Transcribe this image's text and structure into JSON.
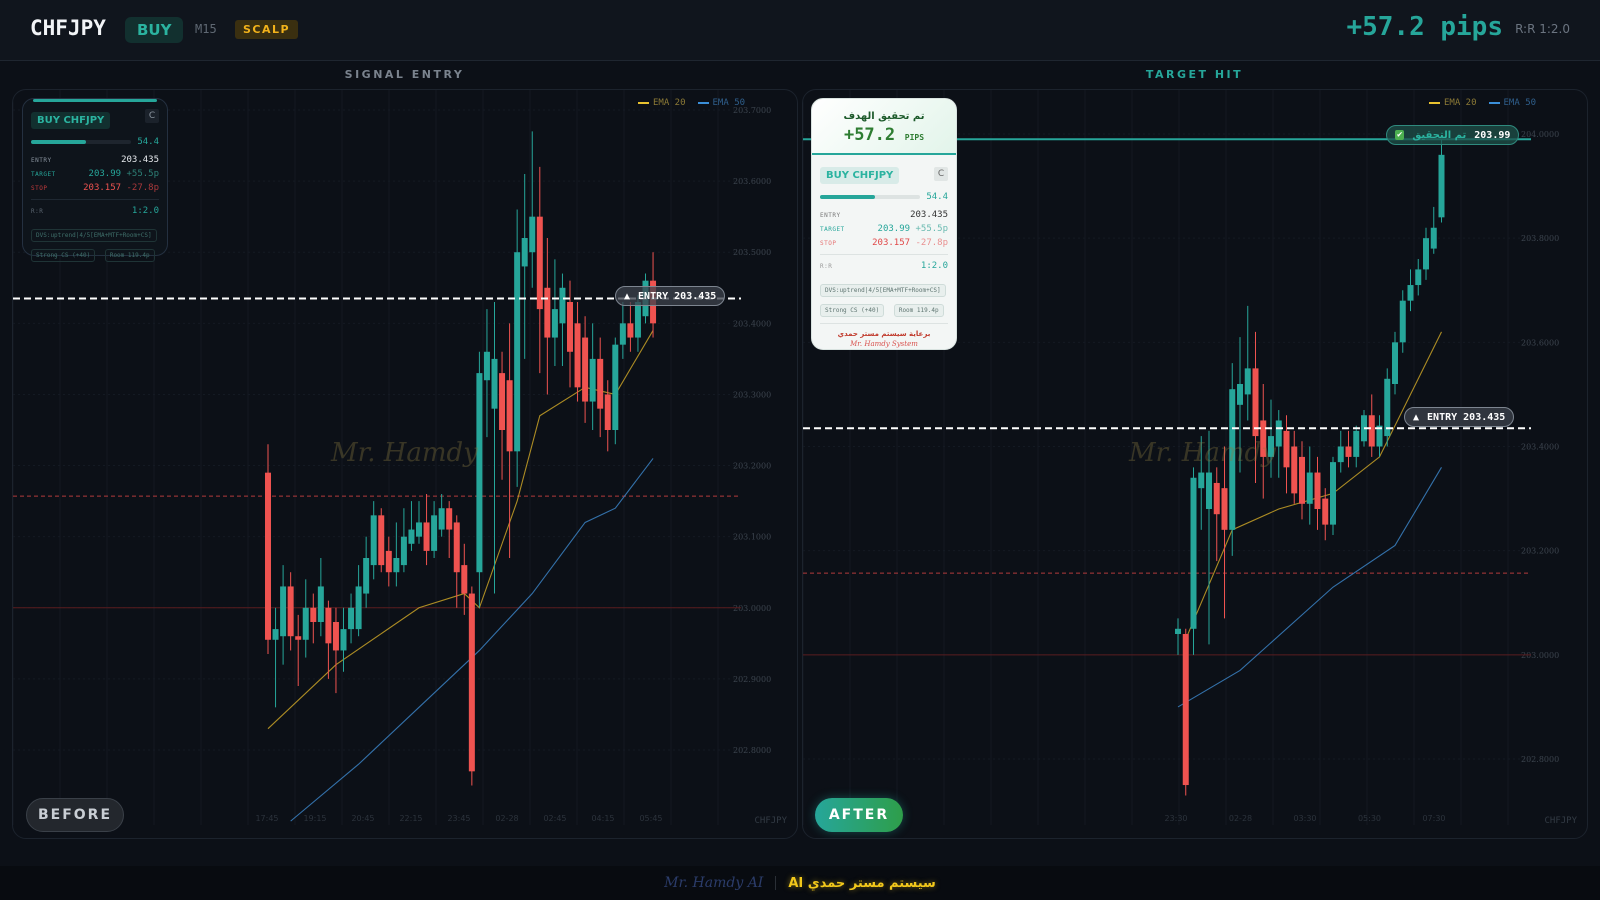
{
  "header": {
    "pair": "CHFJPY",
    "side": "BUY",
    "timeframe": "M15",
    "style": "SCALP",
    "pips": "+57.2 pips",
    "rr": "R:R 1:2.0"
  },
  "colors": {
    "bull": "#26a69a",
    "bear": "#ef5350",
    "ema20": "#c9a227",
    "ema50": "#3b82c4",
    "accent": "#26a69a",
    "gold": "#f2b21b"
  },
  "legend": {
    "ema20": "EMA 20",
    "ema50": "EMA 50"
  },
  "card": {
    "label": "BUY CHFJPY",
    "c_button": "C",
    "score": "54.4",
    "score_fraction": 0.544,
    "entry_key": "ENTRY",
    "entry": "203.435",
    "target_key": "TARGET",
    "target": "203.99",
    "target_pips": "+55.5p",
    "stop_key": "STOP",
    "stop": "203.157",
    "stop_pips": "-27.8p",
    "rr_key": "R:R",
    "rr": "1:2.0",
    "tags": [
      "DVS:uptrend|4/5[EMA+MTF+Room+CS]",
      "Strong CS (+40)",
      "Room 119.4p"
    ]
  },
  "before": {
    "title": "SIGNAL ENTRY",
    "button": "BEFORE",
    "watermark": "Mr. Hamdy",
    "symbol": "CHFJPY",
    "entry_label": "ENTRY 203.435",
    "price_ticks": [
      "203.7000",
      "203.6000",
      "203.5000",
      "203.4000",
      "203.3000",
      "203.2000",
      "203.1000",
      "203.0000",
      "202.9000",
      "202.8000"
    ],
    "time_ticks": [
      "17:45",
      "19:15",
      "20:45",
      "22:15",
      "23:45",
      "02-28",
      "02:45",
      "04:15",
      "05:45"
    ],
    "levels": {
      "entry": 203.435,
      "stop": 203.157,
      "floor": 203.0
    },
    "candles": [
      [
        203.19,
        203.23,
        202.935,
        202.955
      ],
      [
        202.955,
        203.0,
        202.86,
        202.97
      ],
      [
        202.96,
        203.06,
        202.92,
        203.03
      ],
      [
        203.03,
        203.05,
        202.94,
        202.96
      ],
      [
        202.96,
        202.99,
        202.89,
        202.955
      ],
      [
        202.955,
        203.04,
        202.93,
        203.0
      ],
      [
        203.0,
        203.02,
        202.95,
        202.98
      ],
      [
        202.98,
        203.07,
        202.96,
        203.03
      ],
      [
        203.0,
        203.01,
        202.9,
        202.95
      ],
      [
        202.98,
        203.0,
        202.88,
        202.94
      ],
      [
        202.94,
        203.0,
        202.91,
        202.97
      ],
      [
        202.97,
        203.02,
        202.95,
        203.0
      ],
      [
        202.97,
        203.06,
        202.96,
        203.03
      ],
      [
        203.02,
        203.1,
        203.0,
        203.07
      ],
      [
        203.06,
        203.15,
        203.04,
        203.13
      ],
      [
        203.13,
        203.14,
        203.05,
        203.06
      ],
      [
        203.08,
        203.1,
        203.03,
        203.05
      ],
      [
        203.05,
        203.12,
        203.03,
        203.07
      ],
      [
        203.06,
        203.14,
        203.05,
        203.1
      ],
      [
        203.09,
        203.15,
        203.08,
        203.11
      ],
      [
        203.1,
        203.15,
        203.09,
        203.12
      ],
      [
        203.12,
        203.16,
        203.06,
        203.08
      ],
      [
        203.08,
        203.15,
        203.07,
        203.13
      ],
      [
        203.11,
        203.16,
        203.1,
        203.14
      ],
      [
        203.14,
        203.15,
        203.07,
        203.11
      ],
      [
        203.12,
        203.13,
        203.0,
        203.05
      ],
      [
        203.06,
        203.09,
        202.99,
        203.02
      ],
      [
        203.02,
        203.03,
        202.75,
        202.77
      ],
      [
        203.05,
        203.36,
        203.0,
        203.33
      ],
      [
        203.32,
        203.42,
        203.24,
        203.36
      ],
      [
        203.28,
        203.43,
        203.02,
        203.35
      ],
      [
        203.33,
        203.36,
        203.18,
        203.25
      ],
      [
        203.32,
        203.4,
        203.07,
        203.22
      ],
      [
        203.22,
        203.56,
        203.17,
        203.5
      ],
      [
        203.48,
        203.61,
        203.35,
        203.52
      ],
      [
        203.5,
        203.67,
        203.45,
        203.55
      ],
      [
        203.55,
        203.62,
        203.33,
        203.42
      ],
      [
        203.45,
        203.52,
        203.3,
        203.38
      ],
      [
        203.38,
        203.49,
        203.34,
        203.42
      ],
      [
        203.4,
        203.47,
        203.34,
        203.45
      ],
      [
        203.43,
        203.46,
        203.31,
        203.36
      ],
      [
        203.4,
        203.43,
        203.29,
        203.31
      ],
      [
        203.38,
        203.41,
        203.26,
        203.29
      ],
      [
        203.29,
        203.4,
        203.25,
        203.35
      ],
      [
        203.35,
        203.38,
        203.24,
        203.28
      ],
      [
        203.3,
        203.32,
        203.22,
        203.25
      ],
      [
        203.25,
        203.38,
        203.23,
        203.37
      ],
      [
        203.37,
        203.43,
        203.35,
        203.4
      ],
      [
        203.4,
        203.43,
        203.36,
        203.38
      ],
      [
        203.38,
        203.44,
        203.36,
        203.43
      ],
      [
        203.41,
        203.47,
        203.4,
        203.46
      ],
      [
        203.46,
        203.5,
        203.38,
        203.4
      ]
    ],
    "ema20": [
      [
        0,
        202.83
      ],
      [
        9,
        202.92
      ],
      [
        20,
        203.0
      ],
      [
        26,
        203.02
      ],
      [
        28,
        203.0
      ],
      [
        33,
        203.15
      ],
      [
        36,
        203.27
      ],
      [
        42,
        203.31
      ],
      [
        46,
        203.3
      ],
      [
        51,
        203.39
      ]
    ],
    "ema50": [
      [
        3,
        202.7
      ],
      [
        12,
        202.78
      ],
      [
        20,
        202.86
      ],
      [
        28,
        202.94
      ],
      [
        35,
        203.02
      ],
      [
        42,
        203.12
      ],
      [
        46,
        203.14
      ],
      [
        51,
        203.21
      ]
    ]
  },
  "after": {
    "title": "TARGET HIT",
    "button": "AFTER",
    "watermark": "Mr. Hamdy",
    "symbol": "CHFJPY",
    "entry_label": "ENTRY 203.435",
    "target_label": "تم التحقيق",
    "target_value": "203.99",
    "target_icon": "check-mark",
    "hit_title": "تم تحقيق الهدف",
    "hit_pips": "+57.2",
    "hit_unit": "PIPS",
    "sponsor": "برعاية سيستم مستر حمدي",
    "signature": "Mr. Hamdy System",
    "price_ticks": [
      "204.0000",
      "203.8000",
      "203.6000",
      "203.4000",
      "203.2000",
      "203.0000",
      "202.8000"
    ],
    "time_ticks": [
      "23:30",
      "02-28",
      "03:30",
      "05:30",
      "07:30"
    ],
    "levels": {
      "target": 203.99,
      "entry": 203.435,
      "stop": 203.157,
      "floor": 203.0
    },
    "candles": [
      [
        203.04,
        203.07,
        203.0,
        203.05
      ],
      [
        203.04,
        203.05,
        202.73,
        202.75
      ],
      [
        203.05,
        203.36,
        203.0,
        203.34
      ],
      [
        203.32,
        203.42,
        203.24,
        203.35
      ],
      [
        203.28,
        203.43,
        203.02,
        203.35
      ],
      [
        203.33,
        203.36,
        203.18,
        203.27
      ],
      [
        203.32,
        203.4,
        203.07,
        203.24
      ],
      [
        203.24,
        203.56,
        203.19,
        203.51
      ],
      [
        203.48,
        203.61,
        203.35,
        203.52
      ],
      [
        203.5,
        203.67,
        203.45,
        203.55
      ],
      [
        203.55,
        203.62,
        203.33,
        203.42
      ],
      [
        203.45,
        203.52,
        203.3,
        203.38
      ],
      [
        203.38,
        203.49,
        203.34,
        203.42
      ],
      [
        203.4,
        203.47,
        203.34,
        203.45
      ],
      [
        203.43,
        203.46,
        203.31,
        203.36
      ],
      [
        203.4,
        203.43,
        203.29,
        203.31
      ],
      [
        203.38,
        203.41,
        203.26,
        203.29
      ],
      [
        203.29,
        203.4,
        203.25,
        203.35
      ],
      [
        203.35,
        203.38,
        203.24,
        203.28
      ],
      [
        203.3,
        203.32,
        203.22,
        203.25
      ],
      [
        203.25,
        203.38,
        203.23,
        203.37
      ],
      [
        203.37,
        203.43,
        203.35,
        203.4
      ],
      [
        203.4,
        203.43,
        203.36,
        203.38
      ],
      [
        203.38,
        203.44,
        203.36,
        203.43
      ],
      [
        203.41,
        203.47,
        203.4,
        203.46
      ],
      [
        203.46,
        203.5,
        203.38,
        203.4
      ],
      [
        203.4,
        203.46,
        203.38,
        203.44
      ],
      [
        203.42,
        203.55,
        203.4,
        203.53
      ],
      [
        203.52,
        203.62,
        203.5,
        203.6
      ],
      [
        203.6,
        203.7,
        203.58,
        203.68
      ],
      [
        203.68,
        203.74,
        203.66,
        203.71
      ],
      [
        203.71,
        203.76,
        203.69,
        203.74
      ],
      [
        203.74,
        203.82,
        203.72,
        203.8
      ],
      [
        203.78,
        203.86,
        203.77,
        203.82
      ],
      [
        203.84,
        203.99,
        203.83,
        203.96
      ]
    ],
    "ema20": [
      [
        1,
        203.03
      ],
      [
        7,
        203.24
      ],
      [
        13,
        203.28
      ],
      [
        20,
        203.31
      ],
      [
        26,
        203.38
      ],
      [
        30,
        203.5
      ],
      [
        34,
        203.62
      ]
    ],
    "ema50": [
      [
        0,
        202.9
      ],
      [
        8,
        202.97
      ],
      [
        20,
        203.13
      ],
      [
        28,
        203.21
      ],
      [
        34,
        203.36
      ]
    ]
  },
  "footer": {
    "signature": "Mr. Hamdy AI",
    "brand": "AI سيستم مستر حمدي"
  }
}
